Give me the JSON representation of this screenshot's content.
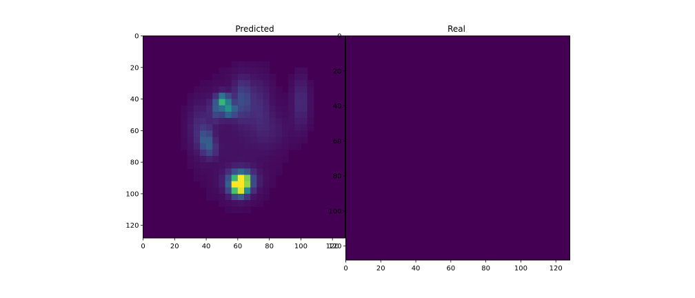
{
  "chart_data": [
    {
      "type": "heatmap",
      "title": "Predicted",
      "xlabel": "",
      "ylabel": "",
      "xlim": [
        0,
        128
      ],
      "ylim": [
        128,
        0
      ],
      "image_size": [
        128,
        128
      ],
      "colormap": "viridis",
      "background_value": 0.0,
      "x_ticks": [
        0,
        20,
        40,
        60,
        80,
        100,
        120
      ],
      "y_ticks": [
        0,
        20,
        40,
        60,
        80,
        100,
        120
      ],
      "x_tick_labels": [
        "0",
        "20",
        "40",
        "60",
        "80",
        "100",
        "120"
      ],
      "y_tick_labels": [
        "0",
        "20",
        "40",
        "60",
        "80",
        "100",
        "120"
      ],
      "blobs": [
        {
          "x": 60,
          "y": 65,
          "sx": 22,
          "sy": 34,
          "value": 0.05
        },
        {
          "x": 36,
          "y": 58,
          "sx": 5,
          "sy": 11,
          "value": 0.1
        },
        {
          "x": 40,
          "y": 66,
          "sx": 3,
          "sy": 5,
          "value": 0.22
        },
        {
          "x": 43,
          "y": 72,
          "sx": 3,
          "sy": 4,
          "value": 0.14
        },
        {
          "x": 51,
          "y": 41,
          "sx": 2.5,
          "sy": 3,
          "value": 0.58
        },
        {
          "x": 47,
          "y": 46,
          "sx": 3,
          "sy": 5,
          "value": 0.24
        },
        {
          "x": 55,
          "y": 47,
          "sx": 2.5,
          "sy": 3,
          "value": 0.44
        },
        {
          "x": 63,
          "y": 40,
          "sx": 4,
          "sy": 9,
          "value": 0.2
        },
        {
          "x": 74,
          "y": 44,
          "sx": 5,
          "sy": 12,
          "value": 0.09
        },
        {
          "x": 100,
          "y": 42,
          "sx": 4,
          "sy": 12,
          "value": 0.12
        },
        {
          "x": 82,
          "y": 60,
          "sx": 8,
          "sy": 8,
          "value": 0.05
        },
        {
          "x": 62,
          "y": 92,
          "sx": 6,
          "sy": 5,
          "value": 0.4
        },
        {
          "x": 61,
          "y": 95,
          "sx": 3.5,
          "sy": 4,
          "value": 1.0
        },
        {
          "x": 64,
          "y": 91,
          "sx": 2.5,
          "sy": 2.5,
          "value": 0.45
        }
      ]
    },
    {
      "type": "heatmap",
      "title": "Real",
      "xlabel": "",
      "ylabel": "",
      "xlim": [
        0,
        128
      ],
      "ylim": [
        128,
        0
      ],
      "image_size": [
        128,
        128
      ],
      "colormap": "viridis",
      "background_value": 0.0,
      "x_ticks": [
        0,
        20,
        40,
        60,
        80,
        100,
        120
      ],
      "y_ticks": [
        0,
        20,
        40,
        60,
        80,
        100,
        120
      ],
      "x_tick_labels": [
        "0",
        "20",
        "40",
        "60",
        "80",
        "100",
        "120"
      ],
      "y_tick_labels": [
        "0",
        "20",
        "40",
        "60",
        "80",
        "100",
        "120"
      ],
      "blobs": []
    }
  ],
  "colors": {
    "viridis_low": "#440154",
    "viridis_high": "#fde725",
    "axis": "#000000",
    "background": "#ffffff"
  }
}
